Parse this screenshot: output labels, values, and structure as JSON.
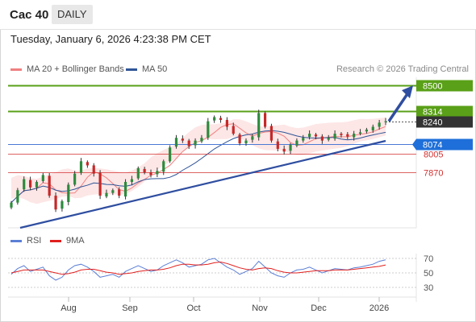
{
  "header": {
    "title": "Cac 40",
    "period": "DAILY"
  },
  "timestamp": "Tuesday, January 6, 2026 4:23:38 PM CET",
  "legend": {
    "items": [
      {
        "label": "MA 20 + Bollinger Bands",
        "color": "#f08080"
      },
      {
        "label": "MA 50",
        "color": "#2f5597"
      }
    ],
    "copyright": "Research © 2026 Trading Central"
  },
  "rsi_legend": {
    "items": [
      {
        "label": "RSI",
        "color": "#5b7fd6"
      },
      {
        "label": "9MA",
        "color": "#e0201e"
      }
    ]
  },
  "colors": {
    "resistance": "#5aa018",
    "support_red": "#d32f2f",
    "pivot_blue": "#1e6fd9",
    "trend": "#2f4ea0",
    "price_box": "#333333",
    "band_fill": "#fde2e2"
  },
  "chart_data": [
    {
      "type": "candlestick",
      "x_labels": [
        "Aug",
        "Sep",
        "Oct",
        "Nov",
        "Dec",
        "2026"
      ],
      "levels": [
        {
          "value": 8500,
          "label": "8500",
          "style": "resistance"
        },
        {
          "value": 8314,
          "label": "8314",
          "style": "resistance"
        },
        {
          "value": 8240,
          "label": "8240",
          "style": "last_price"
        },
        {
          "value": 8074,
          "label": "8074",
          "style": "pivot"
        },
        {
          "value": 8005,
          "label": "8005",
          "style": "support"
        },
        {
          "value": 7870,
          "label": "7870",
          "style": "support"
        }
      ],
      "approx_close_path": [
        7650,
        7740,
        7820,
        7760,
        7800,
        7850,
        7700,
        7600,
        7660,
        7780,
        7860,
        7950,
        7920,
        7860,
        7700,
        7720,
        7740,
        7700,
        7800,
        7820,
        7900,
        7870,
        7850,
        7880,
        7950,
        8050,
        8120,
        8100,
        8060,
        8100,
        8120,
        8240,
        8270,
        8250,
        8200,
        8150,
        8080,
        8100,
        8130,
        8300,
        8200,
        8100,
        8040,
        8020,
        8070,
        8100,
        8120,
        8150,
        8130,
        8100,
        8120,
        8150,
        8140,
        8130,
        8150,
        8160,
        8180,
        8200,
        8230,
        8240
      ],
      "projection": {
        "from": 8240,
        "to": 8500
      }
    },
    {
      "type": "line",
      "title": "RSI",
      "yticks": [
        70,
        50,
        30
      ],
      "series": [
        {
          "name": "RSI",
          "values": [
            48,
            56,
            60,
            52,
            55,
            58,
            46,
            40,
            44,
            54,
            60,
            62,
            58,
            52,
            44,
            46,
            48,
            44,
            52,
            56,
            60,
            56,
            52,
            54,
            60,
            64,
            68,
            64,
            58,
            60,
            62,
            68,
            70,
            64,
            58,
            54,
            48,
            52,
            56,
            66,
            58,
            50,
            46,
            44,
            50,
            54,
            55,
            58,
            54,
            50,
            53,
            56,
            55,
            54,
            57,
            58,
            60,
            62,
            66,
            68
          ]
        },
        {
          "name": "9MA",
          "values": [
            50,
            52,
            54,
            54,
            54,
            54,
            52,
            50,
            48,
            49,
            51,
            54,
            55,
            55,
            53,
            51,
            50,
            48,
            49,
            50,
            52,
            53,
            54,
            54,
            55,
            57,
            60,
            62,
            62,
            61,
            61,
            62,
            64,
            65,
            63,
            60,
            57,
            55,
            54,
            56,
            57,
            56,
            53,
            51,
            50,
            50,
            51,
            52,
            53,
            53,
            53,
            54,
            54,
            54,
            55,
            56,
            57,
            58,
            59,
            61
          ]
        }
      ]
    }
  ]
}
